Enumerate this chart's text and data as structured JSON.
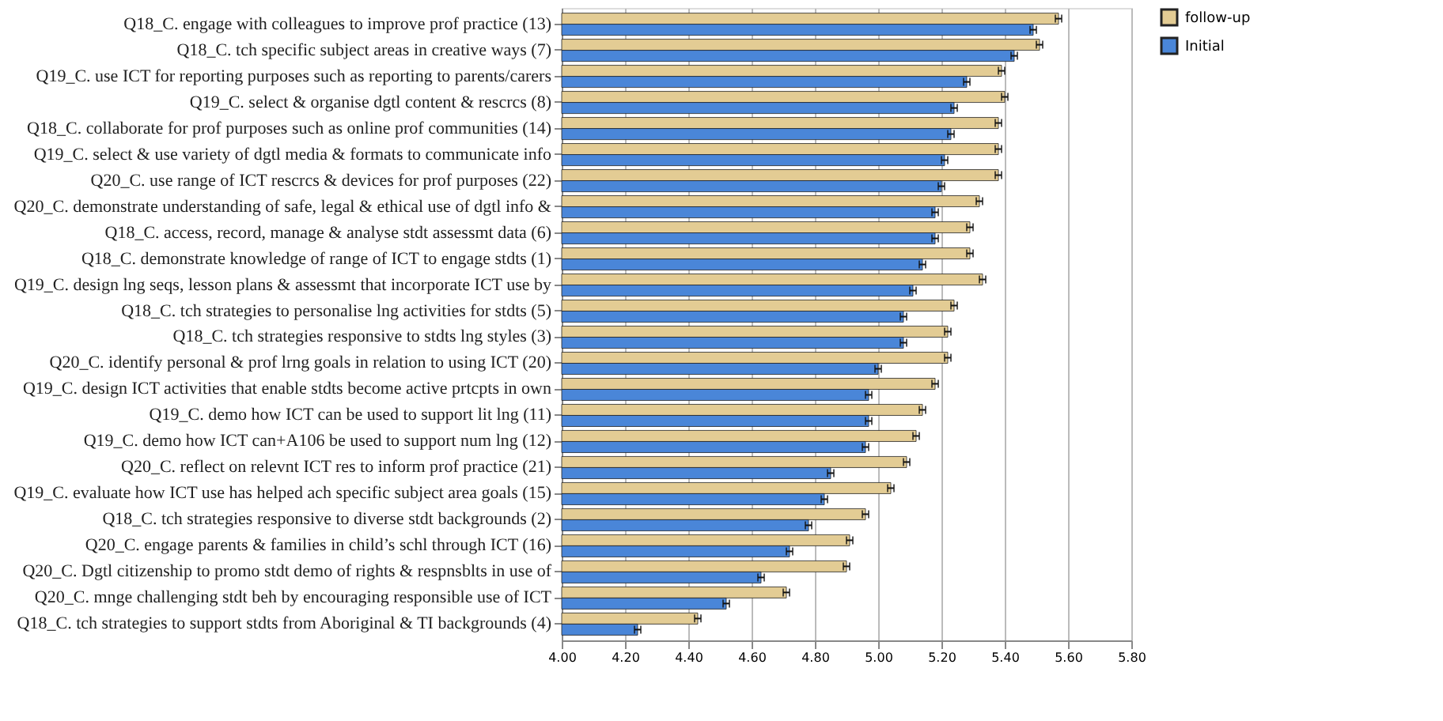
{
  "chart_data": {
    "type": "bar",
    "orientation": "horizontal",
    "categories": [
      "Q18_C. engage with colleagues to improve prof practice (13)",
      "Q18_C. tch specific subject areas in creative ways (7)",
      "Q19_C. use ICT for reporting purposes such as reporting to parents/carers",
      "Q19_C. select & organise dgtl content & rescrcs (8)",
      "Q18_C. collaborate for prof purposes such as online prof communities (14)",
      "Q19_C. select & use variety of dgtl media & formats to communicate info",
      "Q20_C. use range of ICT rescrcs & devices for prof purposes (22)",
      "Q20_C. demonstrate  understanding of safe, legal & ethical use of dgtl info &",
      "Q18_C. access, record, manage & analyse stdt assessmt data (6)",
      "Q18_C. demonstrate knowledge of range of ICT to engage stdts (1)",
      "Q19_C. design lng seqs, lesson plans & assessmt that incorporate ICT use by",
      "Q18_C. tch strategies to personalise lng activities for stdts (5)",
      "Q18_C. tch strategies responsive to stdts lng styles (3)",
      "Q20_C. identify personal & prof lrng goals in relation to using ICT (20)",
      "Q19_C. design ICT activities that enable stdts become active prtcpts in own",
      "Q19_C. demo how ICT can be used to support lit lng (11)",
      "Q19_C. demo how ICT can+A106 be used to support num lng (12)",
      "Q20_C. reflect on relevnt ICT res to inform prof practice (21)",
      "Q19_C. evaluate how ICT use has helped ach specific subject area goals (15)",
      "Q18_C. tch strategies responsive to diverse stdt backgrounds (2)",
      "Q20_C. engage parents & families in child’s schl through ICT (16)",
      "Q20_C. Dgtl citizenship to promo stdt demo of rights & respnsblts in use of",
      "Q20_C. mnge challenging stdt beh by encouraging responsible use of ICT",
      "Q18_C. tch strategies to support stdts from Aboriginal & TI backgrounds (4)"
    ],
    "series": [
      {
        "name": "follow-up",
        "color": "#e3cc94",
        "values": [
          5.57,
          5.51,
          5.39,
          5.4,
          5.38,
          5.38,
          5.38,
          5.32,
          5.29,
          5.29,
          5.33,
          5.24,
          5.22,
          5.22,
          5.18,
          5.14,
          5.12,
          5.09,
          5.04,
          4.96,
          4.91,
          4.9,
          4.71,
          4.43
        ],
        "errors": [
          0.01,
          0.01,
          0.01,
          0.01,
          0.01,
          0.01,
          0.01,
          0.01,
          0.01,
          0.01,
          0.01,
          0.01,
          0.01,
          0.01,
          0.01,
          0.01,
          0.01,
          0.01,
          0.01,
          0.01,
          0.01,
          0.01,
          0.01,
          0.01
        ]
      },
      {
        "name": "Initial",
        "color": "#4a86d8",
        "values": [
          5.49,
          5.43,
          5.28,
          5.24,
          5.23,
          5.21,
          5.2,
          5.18,
          5.18,
          5.14,
          5.11,
          5.08,
          5.08,
          5.0,
          4.97,
          4.97,
          4.96,
          4.85,
          4.83,
          4.78,
          4.72,
          4.63,
          4.52,
          4.24
        ],
        "errors": [
          0.01,
          0.01,
          0.01,
          0.01,
          0.01,
          0.01,
          0.01,
          0.01,
          0.01,
          0.01,
          0.01,
          0.01,
          0.01,
          0.01,
          0.01,
          0.01,
          0.01,
          0.01,
          0.01,
          0.01,
          0.01,
          0.01,
          0.01,
          0.01
        ]
      }
    ],
    "xlim": [
      4.0,
      5.8
    ],
    "xticks": [
      {
        "value": 4.0,
        "label": "4.00"
      },
      {
        "value": 4.2,
        "label": "4.20"
      },
      {
        "value": 4.4,
        "label": "4.40"
      },
      {
        "value": 4.6,
        "label": "4.60"
      },
      {
        "value": 4.8,
        "label": "4.80"
      },
      {
        "value": 5.0,
        "label": "5.00"
      },
      {
        "value": 5.2,
        "label": "5.20"
      },
      {
        "value": 5.4,
        "label": "5.40"
      },
      {
        "value": 5.6,
        "label": "5.60"
      },
      {
        "value": 5.8,
        "label": "5.80"
      }
    ],
    "grid": "x",
    "legend": "right"
  }
}
